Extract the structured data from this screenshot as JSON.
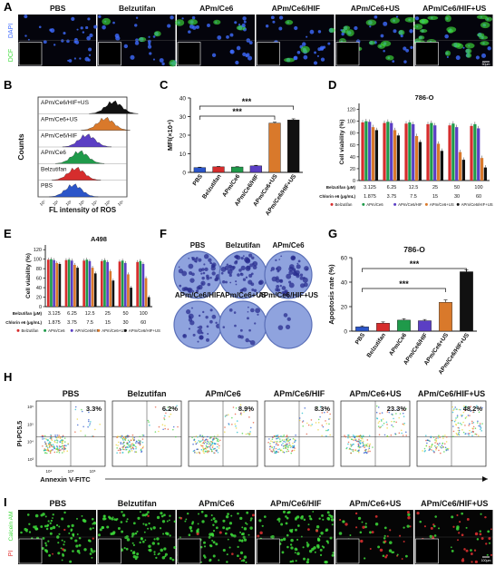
{
  "panels": {
    "A": {
      "letter": "A",
      "groups": [
        "PBS",
        "Belzutifan",
        "APm/Ce6",
        "APm/Ce6/HIF",
        "APm/Ce6+US",
        "APm/Ce6/HIF+US"
      ],
      "channels": [
        "DAPI",
        "DCF"
      ],
      "channel_colors": [
        "#3f6bff",
        "#3ddc3a"
      ],
      "scalebar": "50μm"
    },
    "B": {
      "letter": "B",
      "groups": [
        "APm/Ce6/HIF+US",
        "APm/Ce6+US",
        "APm/Ce6/HIF",
        "APm/Ce6",
        "Belzutifan",
        "PBS"
      ],
      "colors": [
        "#111111",
        "#d9792b",
        "#5b3fc4",
        "#1f9a4a",
        "#d62d2d",
        "#2b55c9"
      ],
      "ylabel": "Counts",
      "xlabel": "FL intensity of ROS",
      "xticks": [
        "10⁰",
        "10¹",
        "10²",
        "10³",
        "10⁴",
        "10⁵",
        "10⁶"
      ]
    },
    "F": {
      "letter": "F",
      "groups": [
        "PBS",
        "Belzutifan",
        "APm/Ce6",
        "APm/Ce6/HIF",
        "APm/Ce6+US",
        "APm/Ce6/HIF+US"
      ],
      "colony_density": [
        0.7,
        0.75,
        0.7,
        0.4,
        0.25,
        0.05
      ]
    },
    "H": {
      "letter": "H",
      "groups": [
        "PBS",
        "Belzutifan",
        "APm/Ce6",
        "APm/Ce6/HIF",
        "APm/Ce6+US",
        "APm/Ce6/HIF+US"
      ],
      "percents": [
        "3.3%",
        "6.2%",
        "8.9%",
        "8.3%",
        "23.3%",
        "48.2%"
      ],
      "ylabel": "PI-PC5.5",
      "xlabel": "Annexin V-FITC",
      "yticks": [
        "10⁶",
        "10⁵",
        "10⁴",
        "10³"
      ],
      "xticks": [
        "10⁴",
        "10⁵",
        "10⁶"
      ]
    },
    "I": {
      "letter": "I",
      "groups": [
        "PBS",
        "Belzutifan",
        "APm/Ce6",
        "APm/Ce6/HIF",
        "APm/Ce6+US",
        "APm/Ce6/HIF+US"
      ],
      "channels": [
        "Calcein AM",
        "PI"
      ],
      "channel_colors": [
        "#3ddc3a",
        "#e43333"
      ],
      "scalebar": "100μm"
    }
  },
  "chart_data": [
    {
      "panel": "C",
      "type": "bar",
      "ylabel": "MFI(×10⁴)",
      "categories": [
        "PBS",
        "Belzutifan",
        "APm/Ce6",
        "APm/Ce6/HIF",
        "APm/Ce6+US",
        "APm/Ce6/HIF+US"
      ],
      "values": [
        2.6,
        3.0,
        2.9,
        3.5,
        26.5,
        28.2
      ],
      "errors": [
        0.2,
        0.2,
        0.2,
        0.3,
        0.5,
        0.6
      ],
      "colors": [
        "#2b55c9",
        "#d62d2d",
        "#1f9a4a",
        "#5b3fc4",
        "#d9792b",
        "#111111"
      ],
      "ylim": [
        0,
        40
      ],
      "yticks": [
        0,
        10,
        20,
        30,
        40
      ],
      "significance": [
        "***",
        "***"
      ]
    },
    {
      "panel": "D",
      "type": "bar",
      "title": "786-O",
      "ylabel": "Cell viability (%)",
      "ylim": [
        0,
        130
      ],
      "yticks": [
        0,
        20,
        40,
        60,
        80,
        100,
        120
      ],
      "belzutifan_label": "Belzutifan (μM)",
      "belzutifan_values": [
        "3.125",
        "6.25",
        "12.5",
        "25",
        "50",
        "100"
      ],
      "chlorin_label": "Chlorin e6 (μg/mL)",
      "chlorin_values": [
        "1.875",
        "3.75",
        "7.5",
        "15",
        "30",
        "60"
      ],
      "series": [
        {
          "name": "Belzutifan",
          "color": "#d62d2d",
          "values": [
            98,
            97,
            96,
            95,
            93,
            92
          ]
        },
        {
          "name": "APm/Ce6",
          "color": "#1f9a4a",
          "values": [
            100,
            99,
            98,
            97,
            96,
            95
          ]
        },
        {
          "name": "APm/Ce6/HIF",
          "color": "#5b3fc4",
          "values": [
            99,
            97,
            95,
            93,
            90,
            88
          ]
        },
        {
          "name": "APm/Ce6+US",
          "color": "#d9792b",
          "values": [
            90,
            85,
            75,
            62,
            48,
            38
          ]
        },
        {
          "name": "APm/Ce6/HIF+US",
          "color": "#111111",
          "values": [
            85,
            76,
            65,
            50,
            35,
            22
          ]
        }
      ]
    },
    {
      "panel": "E",
      "type": "bar",
      "title": "A498",
      "ylabel": "Cell viability (%)",
      "ylim": [
        0,
        130
      ],
      "yticks": [
        0,
        20,
        40,
        60,
        80,
        100,
        120
      ],
      "belzutifan_label": "Belzutifan (μM)",
      "belzutifan_values": [
        "3.125",
        "6.25",
        "12.5",
        "25",
        "50",
        "100"
      ],
      "chlorin_label": "Chlorin e6 (μg/mL)",
      "chlorin_values": [
        "1.875",
        "3.75",
        "7.5",
        "15",
        "30",
        "60"
      ],
      "series": [
        {
          "name": "Belzutifan",
          "color": "#d62d2d",
          "values": [
            99,
            98,
            97,
            96,
            95,
            94
          ]
        },
        {
          "name": "APm/Ce6",
          "color": "#1f9a4a",
          "values": [
            100,
            99,
            99,
            98,
            97,
            96
          ]
        },
        {
          "name": "APm/Ce6/HIF",
          "color": "#5b3fc4",
          "values": [
            98,
            97,
            96,
            94,
            92,
            90
          ]
        },
        {
          "name": "APm/Ce6+US",
          "color": "#d9792b",
          "values": [
            92,
            88,
            82,
            75,
            68,
            60
          ]
        },
        {
          "name": "APm/Ce6/HIF+US",
          "color": "#111111",
          "values": [
            90,
            82,
            70,
            55,
            40,
            20
          ]
        }
      ]
    },
    {
      "panel": "G",
      "type": "bar",
      "title": "786-O",
      "ylabel": "Apoptosis rate (%)",
      "categories": [
        "PBS",
        "Belzutifan",
        "APm/Ce6",
        "APm/Ce6/HIF",
        "APm/Ce6+US",
        "APm/Ce6/HIF+US"
      ],
      "values": [
        3.5,
        6.5,
        9.0,
        8.5,
        23.5,
        48.5
      ],
      "errors": [
        0.8,
        1.0,
        1.2,
        1.0,
        2.0,
        1.5
      ],
      "colors": [
        "#2b55c9",
        "#d62d2d",
        "#1f9a4a",
        "#5b3fc4",
        "#d9792b",
        "#111111"
      ],
      "ylim": [
        0,
        60
      ],
      "yticks": [
        0,
        20,
        40,
        60
      ],
      "significance": [
        "***",
        "***"
      ]
    }
  ]
}
